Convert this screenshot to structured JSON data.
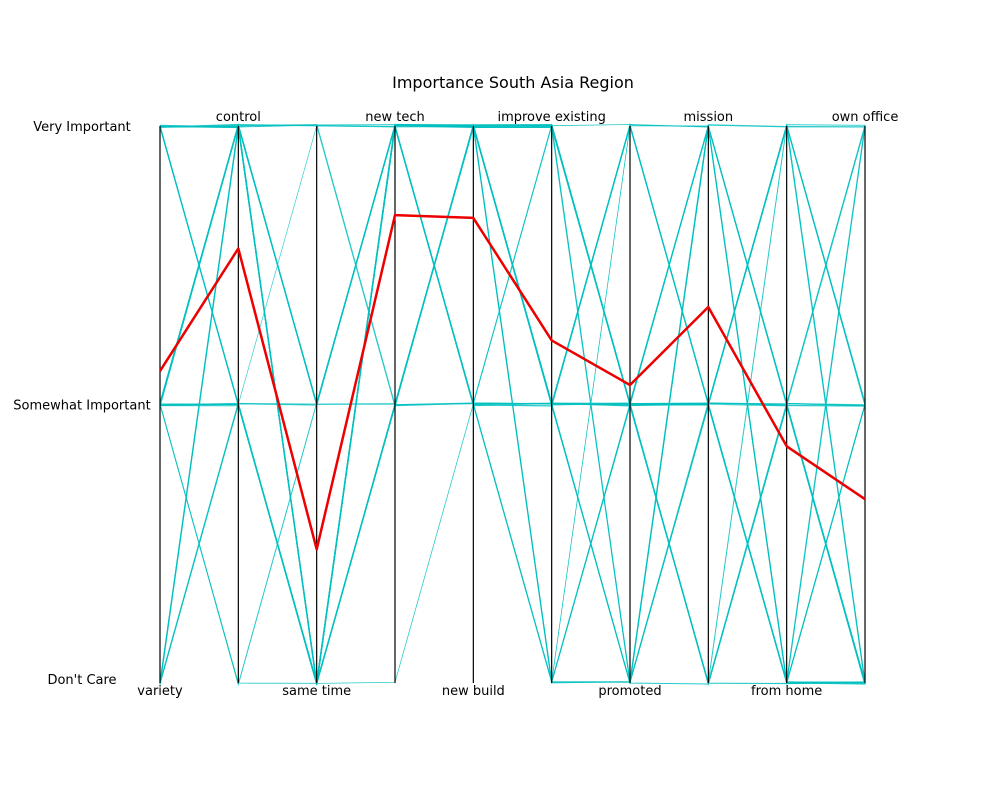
{
  "chart_data": {
    "type": "parallel-coordinates",
    "title": "Importance South Asia Region",
    "axes": [
      "variety",
      "control",
      "same time",
      "new tech",
      "new build",
      "improve existing",
      "promoted",
      "mission",
      "from home",
      "own office"
    ],
    "levels": [
      "Don't Care",
      "Somewhat Important",
      "Very Important"
    ],
    "level_values": [
      0,
      1,
      2
    ],
    "ylim": [
      0,
      2
    ],
    "grid": false,
    "legend": "none",
    "colors": {
      "respondents": "#00bfbf",
      "mean": "#ee0000",
      "axis": "#000000"
    },
    "mean_line": {
      "values": [
        1.12,
        1.56,
        0.48,
        1.68,
        1.67,
        1.23,
        1.07,
        1.35,
        0.85,
        0.66
      ]
    },
    "respondents": [
      [
        2,
        2,
        1,
        2,
        2,
        1,
        2,
        2,
        0,
        0
      ],
      [
        1,
        2,
        0,
        2,
        2,
        2,
        1,
        2,
        1,
        0
      ],
      [
        1,
        1,
        0,
        2,
        1,
        1,
        0,
        1,
        0,
        0
      ],
      [
        0,
        2,
        1,
        2,
        2,
        0,
        1,
        1,
        2,
        1
      ],
      [
        2,
        1,
        0,
        1,
        2,
        1,
        0,
        2,
        1,
        2
      ],
      [
        1,
        2,
        2,
        2,
        1,
        1,
        2,
        1,
        0,
        1
      ],
      [
        1,
        1,
        0,
        2,
        2,
        2,
        1,
        0,
        1,
        0
      ],
      [
        2,
        2,
        0,
        1,
        1,
        1,
        2,
        1,
        2,
        1
      ],
      [
        1,
        0,
        1,
        2,
        2,
        0,
        0,
        1,
        0,
        0
      ],
      [
        0,
        1,
        0,
        1,
        2,
        1,
        1,
        2,
        1,
        2
      ],
      [
        2,
        2,
        2,
        2,
        2,
        2,
        0,
        0,
        1,
        0
      ],
      [
        1,
        2,
        0,
        2,
        1,
        1,
        1,
        1,
        2,
        0
      ],
      [
        1,
        1,
        1,
        2,
        2,
        2,
        2,
        2,
        0,
        1
      ],
      [
        2,
        1,
        0,
        0,
        1,
        0,
        1,
        1,
        0,
        0
      ],
      [
        1,
        2,
        1,
        1,
        2,
        1,
        0,
        2,
        1,
        1
      ],
      [
        0,
        2,
        0,
        2,
        2,
        2,
        1,
        1,
        2,
        2
      ],
      [
        2,
        2,
        0,
        2,
        1,
        1,
        1,
        0,
        0,
        0
      ],
      [
        1,
        1,
        2,
        2,
        2,
        0,
        2,
        1,
        1,
        0
      ],
      [
        1,
        2,
        0,
        1,
        1,
        2,
        1,
        2,
        0,
        1
      ],
      [
        2,
        1,
        1,
        2,
        2,
        1,
        0,
        1,
        2,
        0
      ],
      [
        1,
        2,
        0,
        2,
        2,
        1,
        2,
        2,
        1,
        0
      ],
      [
        0,
        1,
        0,
        1,
        1,
        2,
        1,
        1,
        0,
        2
      ],
      [
        2,
        2,
        1,
        2,
        2,
        1,
        1,
        0,
        1,
        1
      ],
      [
        1,
        2,
        0,
        2,
        1,
        0,
        0,
        2,
        2,
        0
      ],
      [
        1,
        1,
        1,
        1,
        2,
        2,
        1,
        1,
        0,
        1
      ],
      [
        2,
        2,
        0,
        2,
        2,
        1,
        2,
        1,
        1,
        0
      ],
      [
        1,
        0,
        0,
        2,
        1,
        1,
        0,
        2,
        0,
        2
      ],
      [
        2,
        2,
        2,
        1,
        2,
        2,
        1,
        1,
        1,
        0
      ],
      [
        1,
        1,
        0,
        2,
        2,
        1,
        1,
        0,
        2,
        1
      ],
      [
        0,
        2,
        1,
        2,
        1,
        0,
        2,
        2,
        0,
        0
      ],
      [
        1,
        2,
        0,
        1,
        2,
        2,
        0,
        1,
        1,
        1
      ],
      [
        2,
        1,
        0,
        2,
        2,
        1,
        1,
        2,
        0,
        0
      ],
      [
        1,
        2,
        1,
        2,
        1,
        1,
        2,
        1,
        2,
        2
      ],
      [
        1,
        1,
        0,
        1,
        2,
        0,
        1,
        1,
        0,
        0
      ]
    ]
  }
}
